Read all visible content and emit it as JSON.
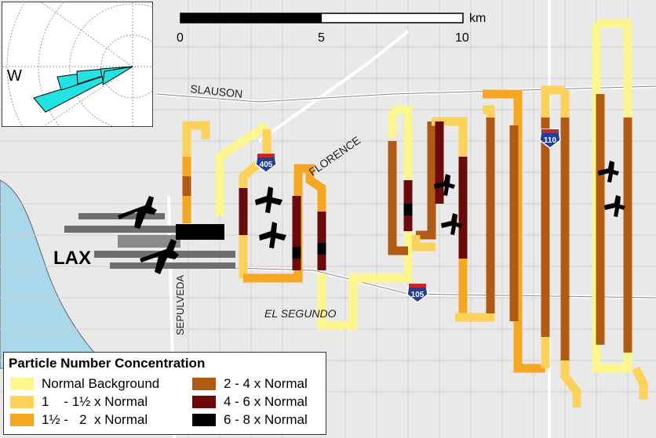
{
  "scale_bar": {
    "ticks": [
      "0",
      "5",
      "10"
    ],
    "unit": "km"
  },
  "inset": {
    "direction_label": "W"
  },
  "place_labels": {
    "lax": "LAX",
    "slauson": "SLAUSON",
    "florence": "FLORENCE",
    "el_segundo": "EL SEGUNDO",
    "sepulveda": "SEPULVEDA"
  },
  "highway_shields": {
    "i405": "405",
    "i110": "110",
    "i105": "105"
  },
  "legend": {
    "title": "Particle Number Concentration",
    "items": [
      {
        "label": "Normal Background",
        "color": "#fdf58e"
      },
      {
        "label": "1    - 1½ x Normal",
        "color": "#fdd25a"
      },
      {
        "label": "1½ -   2  x Normal",
        "color": "#f5a623"
      },
      {
        "label": "2 - 4 x Normal",
        "color": "#b05a14"
      },
      {
        "label": "4 - 6 x Normal",
        "color": "#6b0a0a"
      },
      {
        "label": "6 - 8 x Normal",
        "color": "#000000"
      }
    ]
  },
  "colors": {
    "ocean": "#a8d8ea",
    "land": "#e9e9e9",
    "road": "#ffffff",
    "wind_rose": "#22e3e3"
  }
}
